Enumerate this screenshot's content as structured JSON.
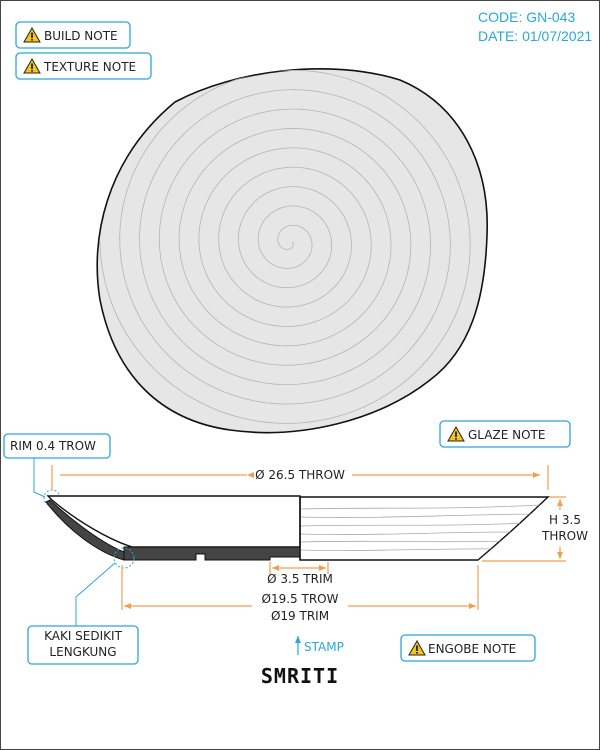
{
  "header": {
    "code": "CODE: GN-043",
    "date": "DATE: 01/07/2021"
  },
  "notes": {
    "build": "BUILD NOTE",
    "texture": "TEXTURE NOTE",
    "glaze": "GLAZE NOTE",
    "engobe": "ENGOBE NOTE"
  },
  "callouts": {
    "rim": "RIM 0.4 TROW",
    "foot_line1": "KAKI SEDIKIT",
    "foot_line2": "LENGKUNG"
  },
  "dimensions": {
    "outer_diameter": "Ø 26.5 THROW",
    "height_line1": "H 3.5",
    "height_line2": "THROW",
    "trim": "Ø 3.5 TRIM",
    "base_line1": "Ø19.5 TROW",
    "base_line2": "Ø19 TRIM"
  },
  "stamp": {
    "label": "STAMP",
    "brand": "SMRITI"
  },
  "icons": {
    "warning": "warning-icon",
    "stamp_arrow": "arrow-up-icon"
  },
  "colors": {
    "accent": "#2aa8d8",
    "dimension": "#f0a050",
    "warning": "#f5c518"
  }
}
